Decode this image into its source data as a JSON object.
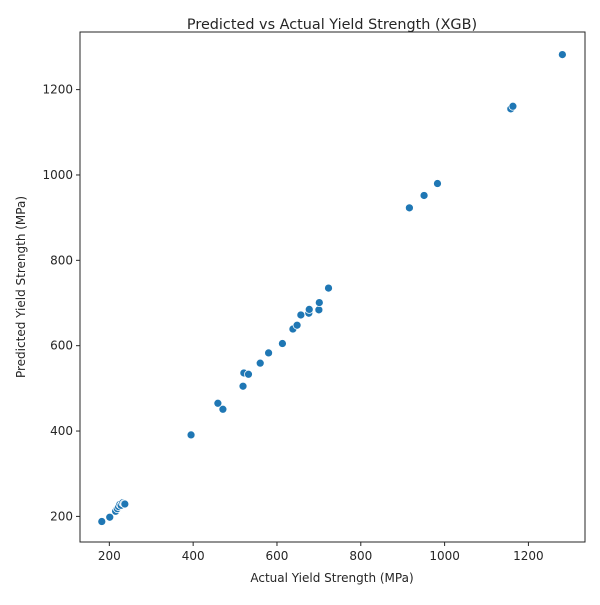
{
  "chart_data": {
    "type": "scatter",
    "title": "Predicted vs Actual Yield Strength (XGB)",
    "xlabel": "Actual Yield Strength (MPa)",
    "ylabel": "Predicted Yield Strength (MPa)",
    "xlim": [
      130,
      1335
    ],
    "ylim": [
      140,
      1335
    ],
    "xticks": [
      200,
      400,
      600,
      800,
      1000,
      1200
    ],
    "yticks": [
      200,
      400,
      600,
      800,
      1000,
      1200
    ],
    "grid": false,
    "legend": "none",
    "marker_color": "#1f77b4",
    "marker_edge_color": "#ffffff",
    "series": [
      {
        "x": [
          182,
          201,
          215,
          219,
          222,
          225,
          228,
          232,
          235,
          237,
          395,
          459,
          471,
          519,
          521,
          532,
          560,
          580,
          613,
          638,
          648,
          657,
          676,
          677,
          700,
          701,
          723,
          916,
          951,
          983,
          1158,
          1163,
          1281
        ],
        "y": [
          188,
          198,
          212,
          218,
          223,
          228,
          226,
          232,
          230,
          229,
          391,
          465,
          451,
          505,
          536,
          533,
          559,
          583,
          605,
          639,
          648,
          672,
          676,
          685,
          684,
          701,
          735,
          923,
          952,
          980,
          1155,
          1161,
          1282
        ]
      }
    ]
  }
}
